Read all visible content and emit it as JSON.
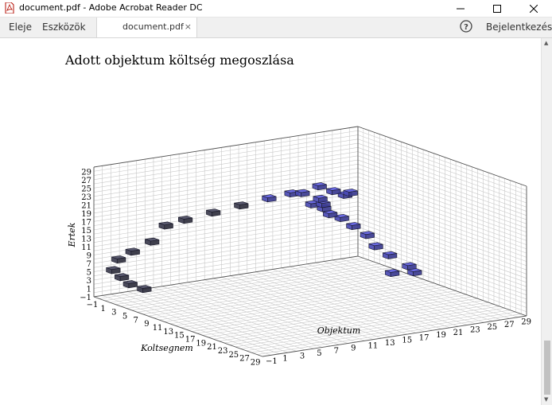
{
  "window": {
    "title": "document.pdf - Adobe Acrobat Reader DC",
    "controls": [
      "minimize-icon",
      "maximize-icon",
      "close-icon"
    ]
  },
  "menubar": {
    "home": "Eleje",
    "tools": "Eszközök",
    "tab_label": "document.pdf",
    "tab_close": "×",
    "help_icon": "help-circle-icon",
    "signin": "Bejelentkezés"
  },
  "colors": {
    "cube_dark": "#3c3c4e",
    "cube_blue": "#4a4ab4"
  },
  "document": {
    "title": "Adott objektum költség megoszlása"
  },
  "chart_data": {
    "type": "3d-bar",
    "title": "Adott objektum költség megoszlása",
    "xlabel": "Koltsegnem",
    "ylabel": "Objektum",
    "zlabel": "Ertek",
    "x_ticks": [
      "−1",
      "1",
      "3",
      "5",
      "7",
      "9",
      "11",
      "13",
      "15",
      "17",
      "19",
      "21",
      "23",
      "25",
      "27",
      "29"
    ],
    "y_ticks": [
      "−1",
      "1",
      "3",
      "5",
      "7",
      "9",
      "11",
      "13",
      "15",
      "17",
      "19",
      "21",
      "23",
      "25",
      "27",
      "29"
    ],
    "z_ticks": [
      "−1",
      "1",
      "3",
      "5",
      "7",
      "9",
      "11",
      "13",
      "15",
      "17",
      "19",
      "21",
      "23",
      "25",
      "27",
      "29"
    ],
    "xlim": [
      -1,
      30
    ],
    "ylim": [
      -1,
      30
    ],
    "zlim": [
      -1,
      30
    ],
    "grid": true,
    "points": [
      {
        "x": 10,
        "y": 27,
        "z": 1,
        "c": "blue"
      },
      {
        "x": 11,
        "y": 29,
        "z": 1,
        "c": "blue"
      },
      {
        "x": 10,
        "y": 29,
        "z": 2,
        "c": "blue"
      },
      {
        "x": 8,
        "y": 28,
        "z": 4,
        "c": "blue"
      },
      {
        "x": 7,
        "y": 27,
        "z": 6,
        "c": "blue"
      },
      {
        "x": 7,
        "y": 26,
        "z": 9,
        "c": "blue"
      },
      {
        "x": 6,
        "y": 25,
        "z": 11,
        "c": "blue"
      },
      {
        "x": 7,
        "y": 23,
        "z": 14,
        "c": "blue"
      },
      {
        "x": 8,
        "y": 21,
        "z": 16,
        "c": "blue"
      },
      {
        "x": 10,
        "y": 19,
        "z": 19,
        "c": "blue"
      },
      {
        "x": 11,
        "y": 17,
        "z": 21,
        "c": "blue"
      },
      {
        "x": 13,
        "y": 17,
        "z": 22,
        "c": "blue"
      },
      {
        "x": 14,
        "y": 16,
        "z": 24,
        "c": "blue"
      },
      {
        "x": 17,
        "y": 17,
        "z": 26,
        "c": "blue"
      },
      {
        "x": 18,
        "y": 17,
        "z": 27,
        "c": "blue"
      },
      {
        "x": 18,
        "y": 15,
        "z": 28,
        "c": "blue"
      },
      {
        "x": 17,
        "y": 14,
        "z": 29,
        "c": "blue"
      },
      {
        "x": 17,
        "y": 12,
        "z": 28,
        "c": "blue"
      },
      {
        "x": 15,
        "y": 12,
        "z": 27,
        "c": "blue"
      },
      {
        "x": 14,
        "y": 10,
        "z": 26,
        "c": "blue"
      },
      {
        "x": 12,
        "y": 8,
        "z": 24,
        "c": "dark"
      },
      {
        "x": 10,
        "y": 6,
        "z": 22,
        "c": "dark"
      },
      {
        "x": 8,
        "y": 4,
        "z": 20,
        "c": "dark"
      },
      {
        "x": 6,
        "y": 3,
        "z": 18,
        "c": "dark"
      },
      {
        "x": 5,
        "y": 2,
        "z": 14,
        "c": "dark"
      },
      {
        "x": 3,
        "y": 1,
        "z": 11,
        "c": "dark"
      },
      {
        "x": 2,
        "y": 0,
        "z": 9,
        "c": "dark"
      },
      {
        "x": 1,
        "y": 0,
        "z": 6,
        "c": "dark"
      },
      {
        "x": 1,
        "y": 1,
        "z": 4,
        "c": "dark"
      },
      {
        "x": 1,
        "y": 2,
        "z": 2,
        "c": "dark"
      },
      {
        "x": 2,
        "y": 3,
        "z": 1,
        "c": "dark"
      }
    ]
  }
}
